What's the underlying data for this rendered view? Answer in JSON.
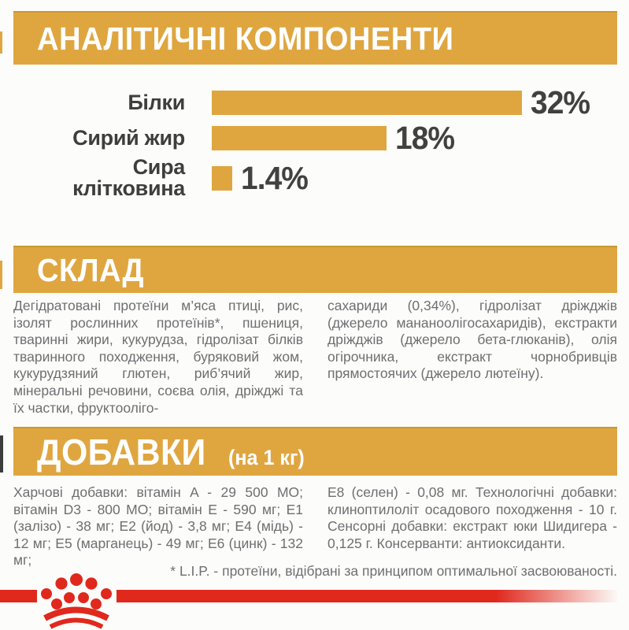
{
  "colors": {
    "gold": "#dfa640",
    "gold_edge": "#c9982f",
    "dark_text": "#3e3e3d",
    "body_text_gray": "#6f6f72",
    "brand_red": "#e0281d",
    "background": "#fcfcfa"
  },
  "sections": {
    "analytical": {
      "title": "АНАЛІТИЧНІ КОМПОНЕНТИ"
    },
    "composition": {
      "title": "СКЛАД",
      "col_left": "Дегідратовані протеїни м’яса птиці, рис, ізолят рослинних протеїнів*, пшениця, тваринні жири, кукурудза, гідролізат білків тваринного походження, буряковий жом, кукурудзяний глютен, риб’ячий жир, мінеральні речовини, соєва олія, дріжджі та їх частки, фруктооліго-",
      "col_right": "сахариди (0,34%), гідролізат дріжджів (джерело мананоолігосахаридів), екстракти дріжджів (джерело бета-глюканів), олія огірочника, екстракт чорнобривців прямостоячих (джерело лютеїну)."
    },
    "additives": {
      "title": "ДОБАВКИ",
      "title_suffix": "(на 1 кг)",
      "col_left": "Харчові добавки: вітамін A - 29 500 МО; вітамін D3 - 800 МО; вітамін E - 590 мг; E1 (залізо) - 38 мг; E2 (йод) - 3,8 мг; E4 (мідь) - 12 мг; E5 (марганець) - 49 мг; E6 (цинк) - 132 мг;",
      "col_right": "E8 (селен) - 0,08 мг. Технологічні добавки: клиноптилоліт осадового походження - 10 г. Сенсорні добавки: екстракт юки Шидигера - 0,125 г. Консерванти: антиоксиданти."
    }
  },
  "chart_data": {
    "type": "bar",
    "orientation": "horizontal",
    "title": "АНАЛІТИЧНІ КОМПОНЕНТИ",
    "categories": [
      "Білки",
      "Сирий жир",
      "Сира клітковина"
    ],
    "display_labels": [
      "Білки",
      "Сирий жир",
      "Сира\nклітковина"
    ],
    "values": [
      32,
      18,
      1.4
    ],
    "value_labels": [
      "32%",
      "18%",
      "1.4%"
    ],
    "xlim": [
      0,
      32
    ],
    "grid": false,
    "legend": false,
    "bar_color": "#dfa640",
    "label_color": "#3e3e3d"
  },
  "footnote": "* L.I.P. - протеїни, відібрані за принципом оптимальної засвоюваності.",
  "logo": {
    "name": "royal-canin-crown",
    "color": "#e0281d"
  }
}
